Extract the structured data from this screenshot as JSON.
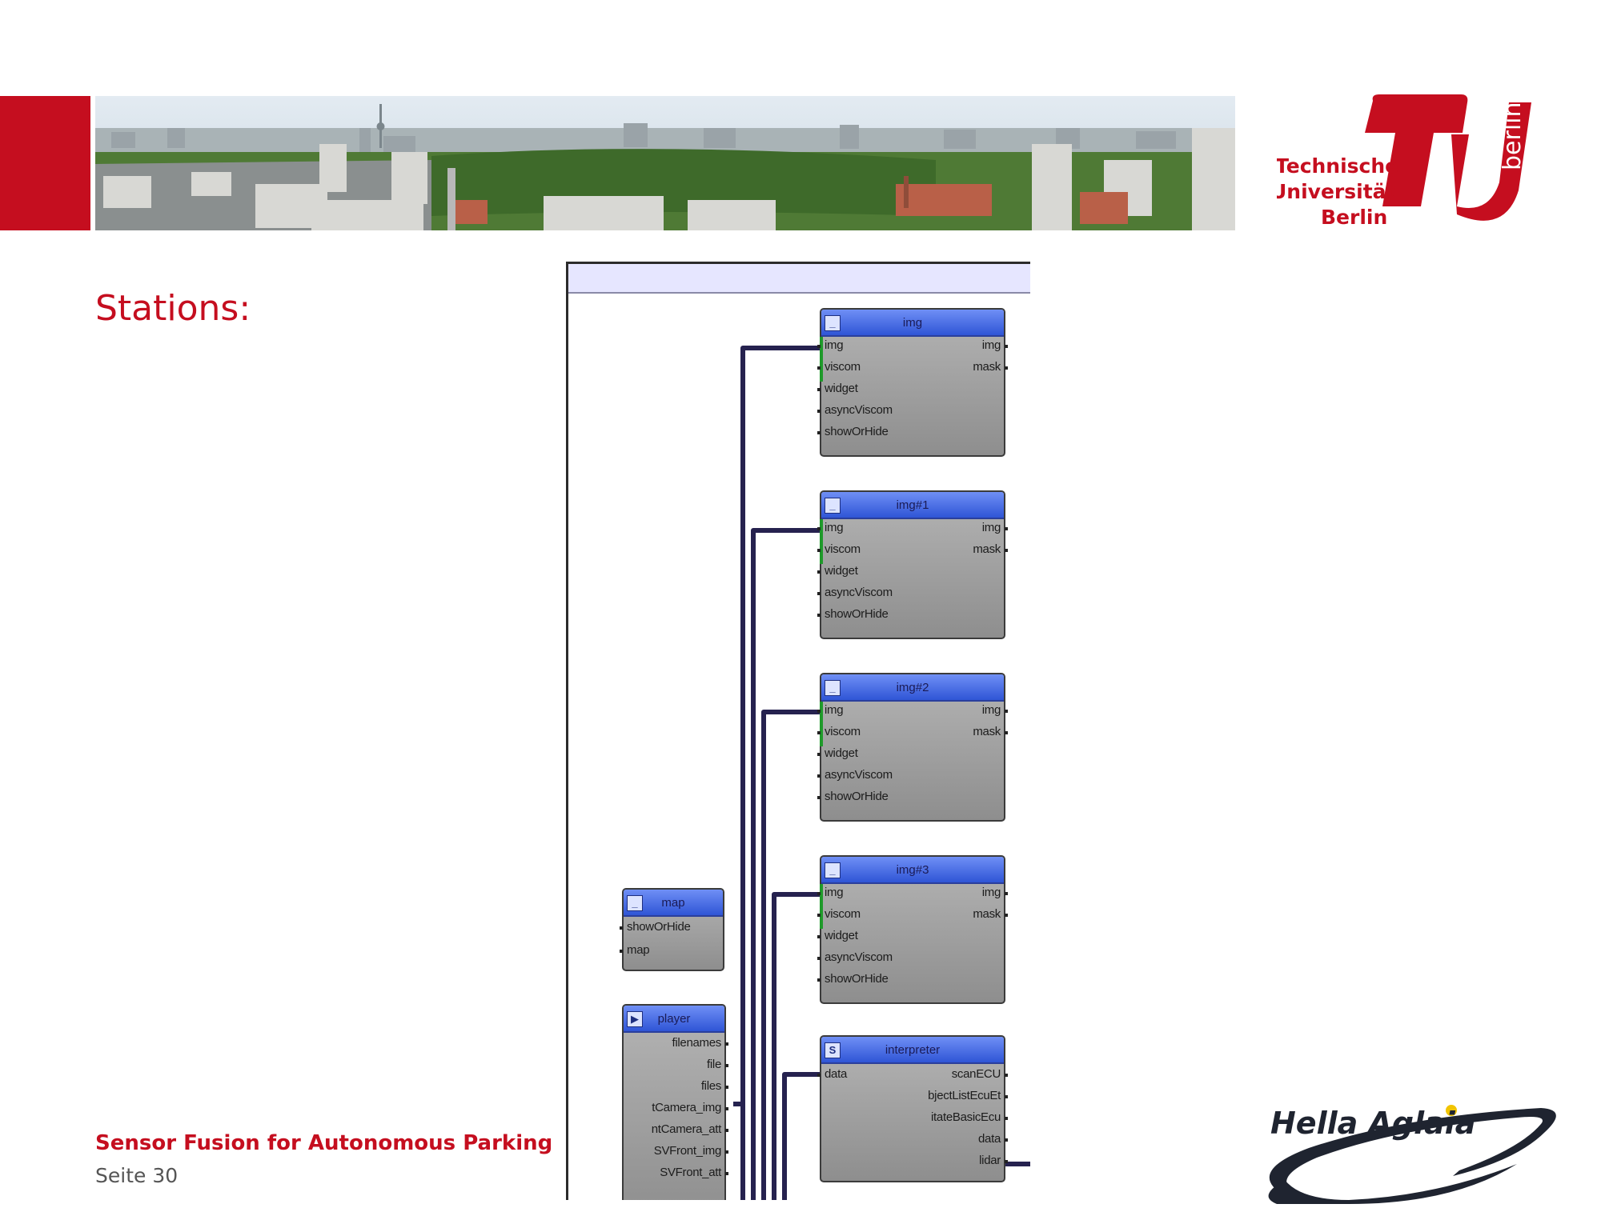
{
  "slide": {
    "heading": "Stations:",
    "footer_title": "Sensor Fusion for Autonomous Parking",
    "page_label": "Seite 30"
  },
  "logos": {
    "tu_berlin": {
      "line1": "Technische",
      "line2": "Universität",
      "line3": "Berlin",
      "side": "berlin"
    },
    "hella": {
      "text": "Hella Aglaia"
    }
  },
  "colors": {
    "brand_red": "#c50e1f",
    "node_title_blue": "#3c62e0",
    "wire": "#26224f",
    "active_port": "#1f9a2a"
  },
  "editor": {
    "nodes": [
      {
        "title": "img",
        "icon": "minimize-icon",
        "inputs": [
          "img",
          "viscom",
          "widget",
          "asyncViscom",
          "showOrHide"
        ],
        "outputs": [
          "img",
          "mask"
        ]
      },
      {
        "title": "img#1",
        "icon": "minimize-icon",
        "inputs": [
          "img",
          "viscom",
          "widget",
          "asyncViscom",
          "showOrHide"
        ],
        "outputs": [
          "img",
          "mask"
        ]
      },
      {
        "title": "img#2",
        "icon": "minimize-icon",
        "inputs": [
          "img",
          "viscom",
          "widget",
          "asyncViscom",
          "showOrHide"
        ],
        "outputs": [
          "img",
          "mask"
        ]
      },
      {
        "title": "img#3",
        "icon": "minimize-icon",
        "inputs": [
          "img",
          "viscom",
          "widget",
          "asyncViscom",
          "showOrHide"
        ],
        "outputs": [
          "img",
          "mask"
        ]
      },
      {
        "title": "map",
        "icon": "minimize-icon",
        "inputs": [
          "showOrHide",
          "map"
        ],
        "outputs": []
      },
      {
        "title": "player",
        "icon": "play-icon",
        "inputs": [],
        "outputs": [
          "filenames",
          "file",
          "files",
          "tCamera_img",
          "ntCamera_att",
          "SVFront_img",
          "SVFront_att"
        ]
      },
      {
        "title": "interpreter",
        "icon": "script-icon",
        "inputs": [
          "data"
        ],
        "outputs": [
          "scanECU",
          "bjectListEcuEt",
          "itateBasicEcu",
          "data",
          "lidar"
        ]
      }
    ]
  }
}
